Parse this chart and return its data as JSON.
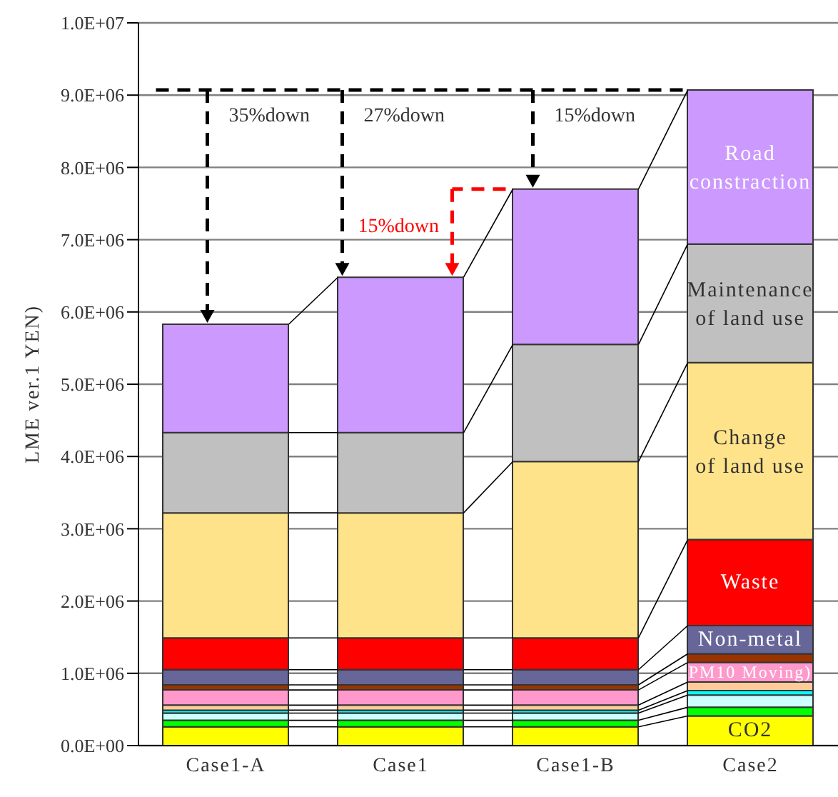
{
  "chart_data": {
    "type": "bar",
    "stacked": true,
    "ylabel": "LME ver.1 YEN)",
    "categories": [
      "Case1-A",
      "Case1",
      "Case1-B",
      "Case2"
    ],
    "series": [
      {
        "name": "CO2",
        "color": "#ffff00",
        "values": [
          260000,
          260000,
          260000,
          410000
        ]
      },
      {
        "color": "#00ff00",
        "values": [
          90000,
          90000,
          90000,
          120000
        ]
      },
      {
        "color": "#ccffff",
        "values": [
          100000,
          100000,
          100000,
          170000
        ]
      },
      {
        "color": "#00ffff",
        "values": [
          40000,
          40000,
          40000,
          60000
        ]
      },
      {
        "color": "#ffcc99",
        "values": [
          70000,
          70000,
          70000,
          120000
        ]
      },
      {
        "name": "PM10 Moving)",
        "color": "#ff99cc",
        "values": [
          210000,
          210000,
          210000,
          270000
        ]
      },
      {
        "color": "#993300",
        "values": [
          70000,
          70000,
          70000,
          120000
        ]
      },
      {
        "name": "Non-metal",
        "color": "#666699",
        "values": [
          210000,
          210000,
          210000,
          390000
        ]
      },
      {
        "name": "Waste",
        "color": "#ff0000",
        "values": [
          440000,
          440000,
          440000,
          1190000
        ]
      },
      {
        "name": "Change of land use",
        "color": "#ffe38a",
        "values": [
          1730000,
          1730000,
          2440000,
          2450000
        ]
      },
      {
        "name": "Maintenance of land use",
        "color": "#c0c0c0",
        "values": [
          1110000,
          1110000,
          1620000,
          1640000
        ]
      },
      {
        "name": "Road constraction",
        "color": "#cc99ff",
        "values": [
          1500000,
          2150000,
          2150000,
          2130000
        ]
      }
    ],
    "ylim": [
      0,
      10000000
    ],
    "yticks": [
      {
        "value": 0,
        "label": "0.0E+00"
      },
      {
        "value": 1000000,
        "label": "1.0E+06"
      },
      {
        "value": 2000000,
        "label": "2.0E+06"
      },
      {
        "value": 3000000,
        "label": "3.0E+06"
      },
      {
        "value": 4000000,
        "label": "4.0E+06"
      },
      {
        "value": 5000000,
        "label": "5.0E+06"
      },
      {
        "value": 6000000,
        "label": "6.0E+06"
      },
      {
        "value": 7000000,
        "label": "7.0E+06"
      },
      {
        "value": 8000000,
        "label": "8.0E+06"
      },
      {
        "value": 9000000,
        "label": "9.0E+06"
      },
      {
        "value": 10000000,
        "label": "1.0E+07"
      }
    ],
    "grid": "y",
    "legend": false,
    "ref_lines": [
      {
        "axis": "y",
        "value": 9070000,
        "color": "#000000",
        "line_style": "dashed"
      }
    ],
    "annotations": [
      "35%down",
      "27%down",
      "15%down",
      "15%down"
    ]
  }
}
